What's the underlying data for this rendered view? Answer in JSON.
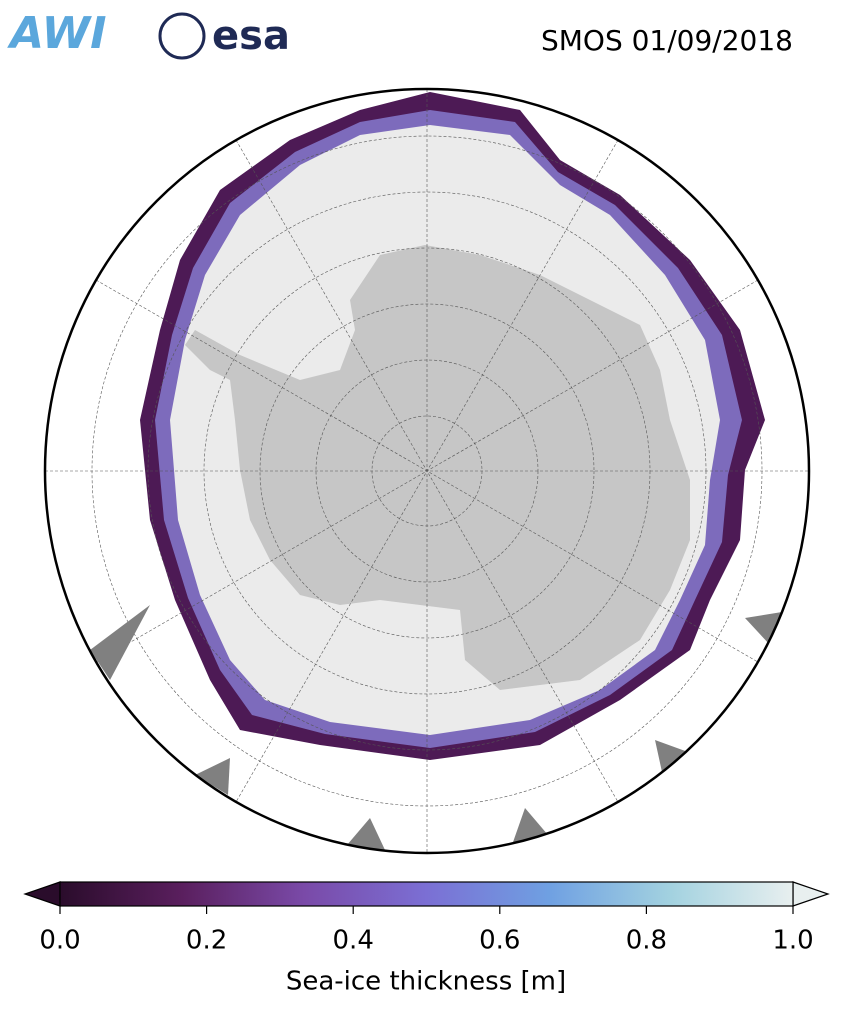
{
  "header": {
    "logos": [
      "AWI",
      "esa"
    ],
    "title": "SMOS 01/09/2018"
  },
  "colorbar": {
    "label": "Sea-ice thickness [m]",
    "range": [
      0,
      1
    ],
    "ticks": [
      {
        "value": 0,
        "label": "0.0"
      },
      0.2,
      0.4,
      0.6,
      0.8,
      {
        "value": 1,
        "label": "1.0"
      }
    ],
    "colormap": [
      "#2a0c2b",
      "#5a1f5e",
      "#7a4aa8",
      "#7b6fd4",
      "#6fa0e2",
      "#a3d2e0",
      "#e8efef"
    ]
  }
}
